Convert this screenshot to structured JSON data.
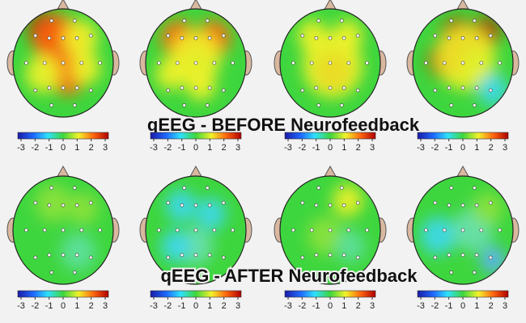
{
  "titles": [
    "qEEG - BEFORE Neurofeedback",
    "qEEG - AFTER Neurofeedback"
  ],
  "colorbar": {
    "ticks": [
      -3,
      -2,
      -1,
      0,
      1,
      2,
      3
    ]
  }
}
